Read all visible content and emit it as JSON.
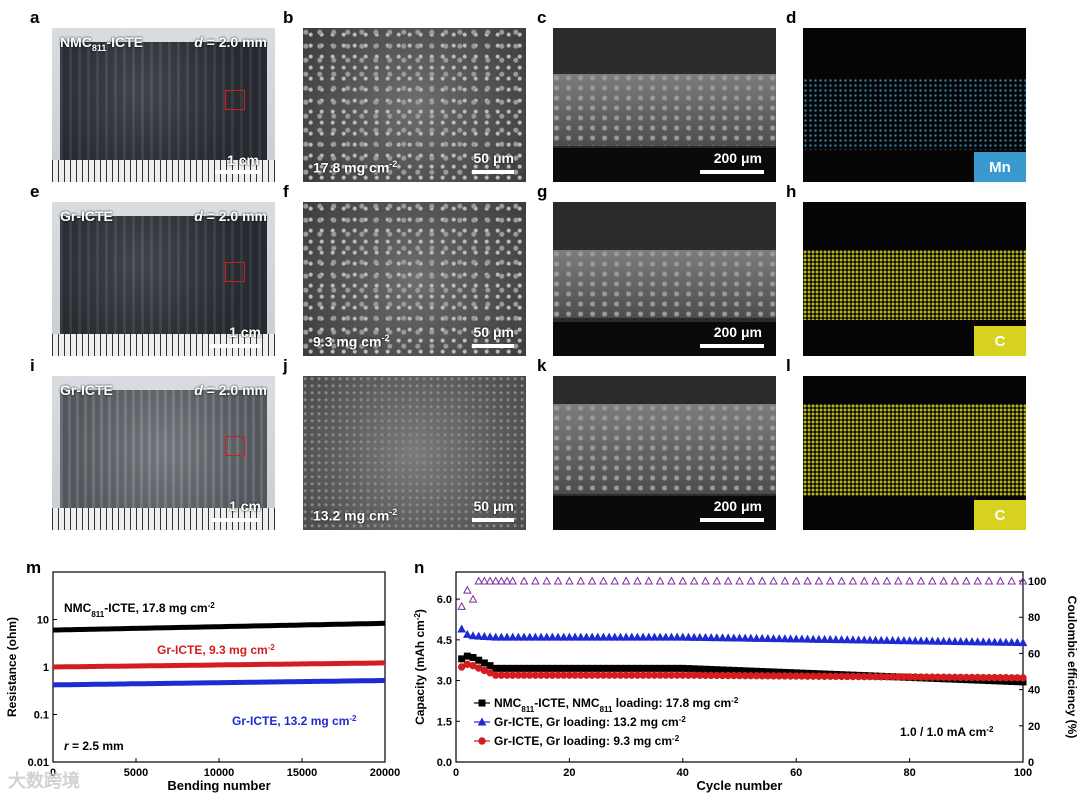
{
  "panels": {
    "a": {
      "letter": "a",
      "sample": "NMC",
      "sample_sub": "811",
      "sample_suffix": "-ICTE",
      "d_prefix": "d",
      "d_value": " = 2.0 mm",
      "scale": "1 cm"
    },
    "b": {
      "letter": "b",
      "loading": "17.8 mg cm",
      "exp": "-2",
      "scale": "50 μm"
    },
    "c": {
      "letter": "c",
      "scale": "200 μm"
    },
    "d": {
      "letter": "d",
      "element": "Mn",
      "color": "#3f8fb5"
    },
    "e": {
      "letter": "e",
      "sample": "Gr-ICTE",
      "d_prefix": "d",
      "d_value": " = 2.0 mm",
      "scale": "1 cm"
    },
    "f": {
      "letter": "f",
      "loading": "9.3 mg cm",
      "exp": "-2",
      "scale": "50 μm"
    },
    "g": {
      "letter": "g",
      "scale": "200 μm"
    },
    "h": {
      "letter": "h",
      "element": "C",
      "color": "#d6d21f"
    },
    "i": {
      "letter": "i",
      "sample": "Gr-ICTE",
      "d_prefix": "d",
      "d_value": " = 2.0 mm",
      "scale": "1 cm"
    },
    "j": {
      "letter": "j",
      "loading": "13.2 mg cm",
      "exp": "-2",
      "scale": "50 μm"
    },
    "k": {
      "letter": "k",
      "scale": "200 μm"
    },
    "l": {
      "letter": "l",
      "element": "C",
      "color": "#d6d21f"
    },
    "m": {
      "letter": "m"
    },
    "n": {
      "letter": "n"
    }
  },
  "chart_data": [
    {
      "type": "line",
      "panel": "m",
      "xlabel": "Bending number",
      "ylabel": "Resistance (ohm)",
      "xlim": [
        0,
        20000
      ],
      "ylim": [
        0.01,
        100
      ],
      "yscale": "log",
      "xticks": [
        0,
        5000,
        10000,
        15000,
        20000
      ],
      "yticks": [
        0.01,
        0.1,
        1,
        10
      ],
      "ytick_labels": [
        "0.01",
        "0.1",
        "1",
        "10"
      ],
      "annotation_prefix": "r",
      "annotation_value": " = 2.5 mm",
      "series": [
        {
          "name": "NMC811-ICTE, 17.8 mg cm-2",
          "label_main": "NMC",
          "label_sub": "811",
          "label_rest": "-ICTE, 17.8 mg cm",
          "label_exp": "-2",
          "color": "#000000",
          "start": 6.0,
          "end": 8.3
        },
        {
          "name": "Gr-ICTE, 9.3 mg cm-2",
          "label_main": "Gr-ICTE, 9.3 mg cm",
          "label_exp": "-2",
          "color": "#d21e1e",
          "start": 1.0,
          "end": 1.22
        },
        {
          "name": "Gr-ICTE, 13.2 mg cm-2",
          "label_main": "Gr-ICTE, 13.2 mg cm",
          "label_exp": "-2",
          "color": "#1e2ad2",
          "start": 0.42,
          "end": 0.52
        }
      ]
    },
    {
      "type": "scatter",
      "panel": "n",
      "xlabel": "Cycle number",
      "ylabel": "Capacity (mAh cm",
      "ylabel_exp": "-2",
      "ylabel_end": ")",
      "y2label": "Coulombic efficiency (%)",
      "xlim": [
        0,
        100
      ],
      "ylim": [
        0,
        7
      ],
      "y2lim": [
        0,
        105
      ],
      "xticks": [
        0,
        20,
        40,
        60,
        80,
        100
      ],
      "yticks": [
        0.0,
        1.5,
        3.0,
        4.5,
        6.0
      ],
      "ytick_labels": [
        "0.0",
        "1.5",
        "3.0",
        "4.5",
        "6.0"
      ],
      "y2ticks": [
        0,
        20,
        40,
        60,
        80,
        100
      ],
      "rate_value": "1.0 / 1.0",
      "rate_unit": " mA cm",
      "rate_exp": "-2",
      "series": [
        {
          "name": "NMC811-ICTE, NMC811 loading: 17.8 mg cm-2",
          "color": "#000000",
          "marker": "square",
          "first": [
            3.8,
            3.9,
            3.85
          ],
          "mid": 3.45,
          "end": 2.95
        },
        {
          "name": "Gr-ICTE, Gr loading: 13.2 mg cm-2",
          "color": "#1e2ad2",
          "marker": "triangle",
          "first": [
            4.9,
            4.7,
            4.65
          ],
          "mid": 4.6,
          "end": 4.4
        },
        {
          "name": "Gr-ICTE, Gr loading: 9.3 mg cm-2",
          "color": "#d21e1e",
          "marker": "circle",
          "first": [
            3.5,
            3.6,
            3.55
          ],
          "mid": 3.2,
          "end": 3.1
        }
      ],
      "ce_series": {
        "color": "#7a2fa0",
        "start": [
          86,
          95,
          90
        ],
        "plateau": 100
      },
      "legend": [
        {
          "pre": "NMC",
          "sub1": "811",
          "mid": "-ICTE, NMC",
          "sub2": "811",
          "post": " loading: 17.8 mg cm",
          "exp": "-2"
        },
        {
          "pre": "Gr-ICTE, Gr loading: 13.2 mg cm",
          "exp": "-2"
        },
        {
          "pre": "Gr-ICTE, Gr loading: 9.3 mg cm",
          "exp": "-2"
        }
      ]
    }
  ],
  "watermark": "大数跨境"
}
